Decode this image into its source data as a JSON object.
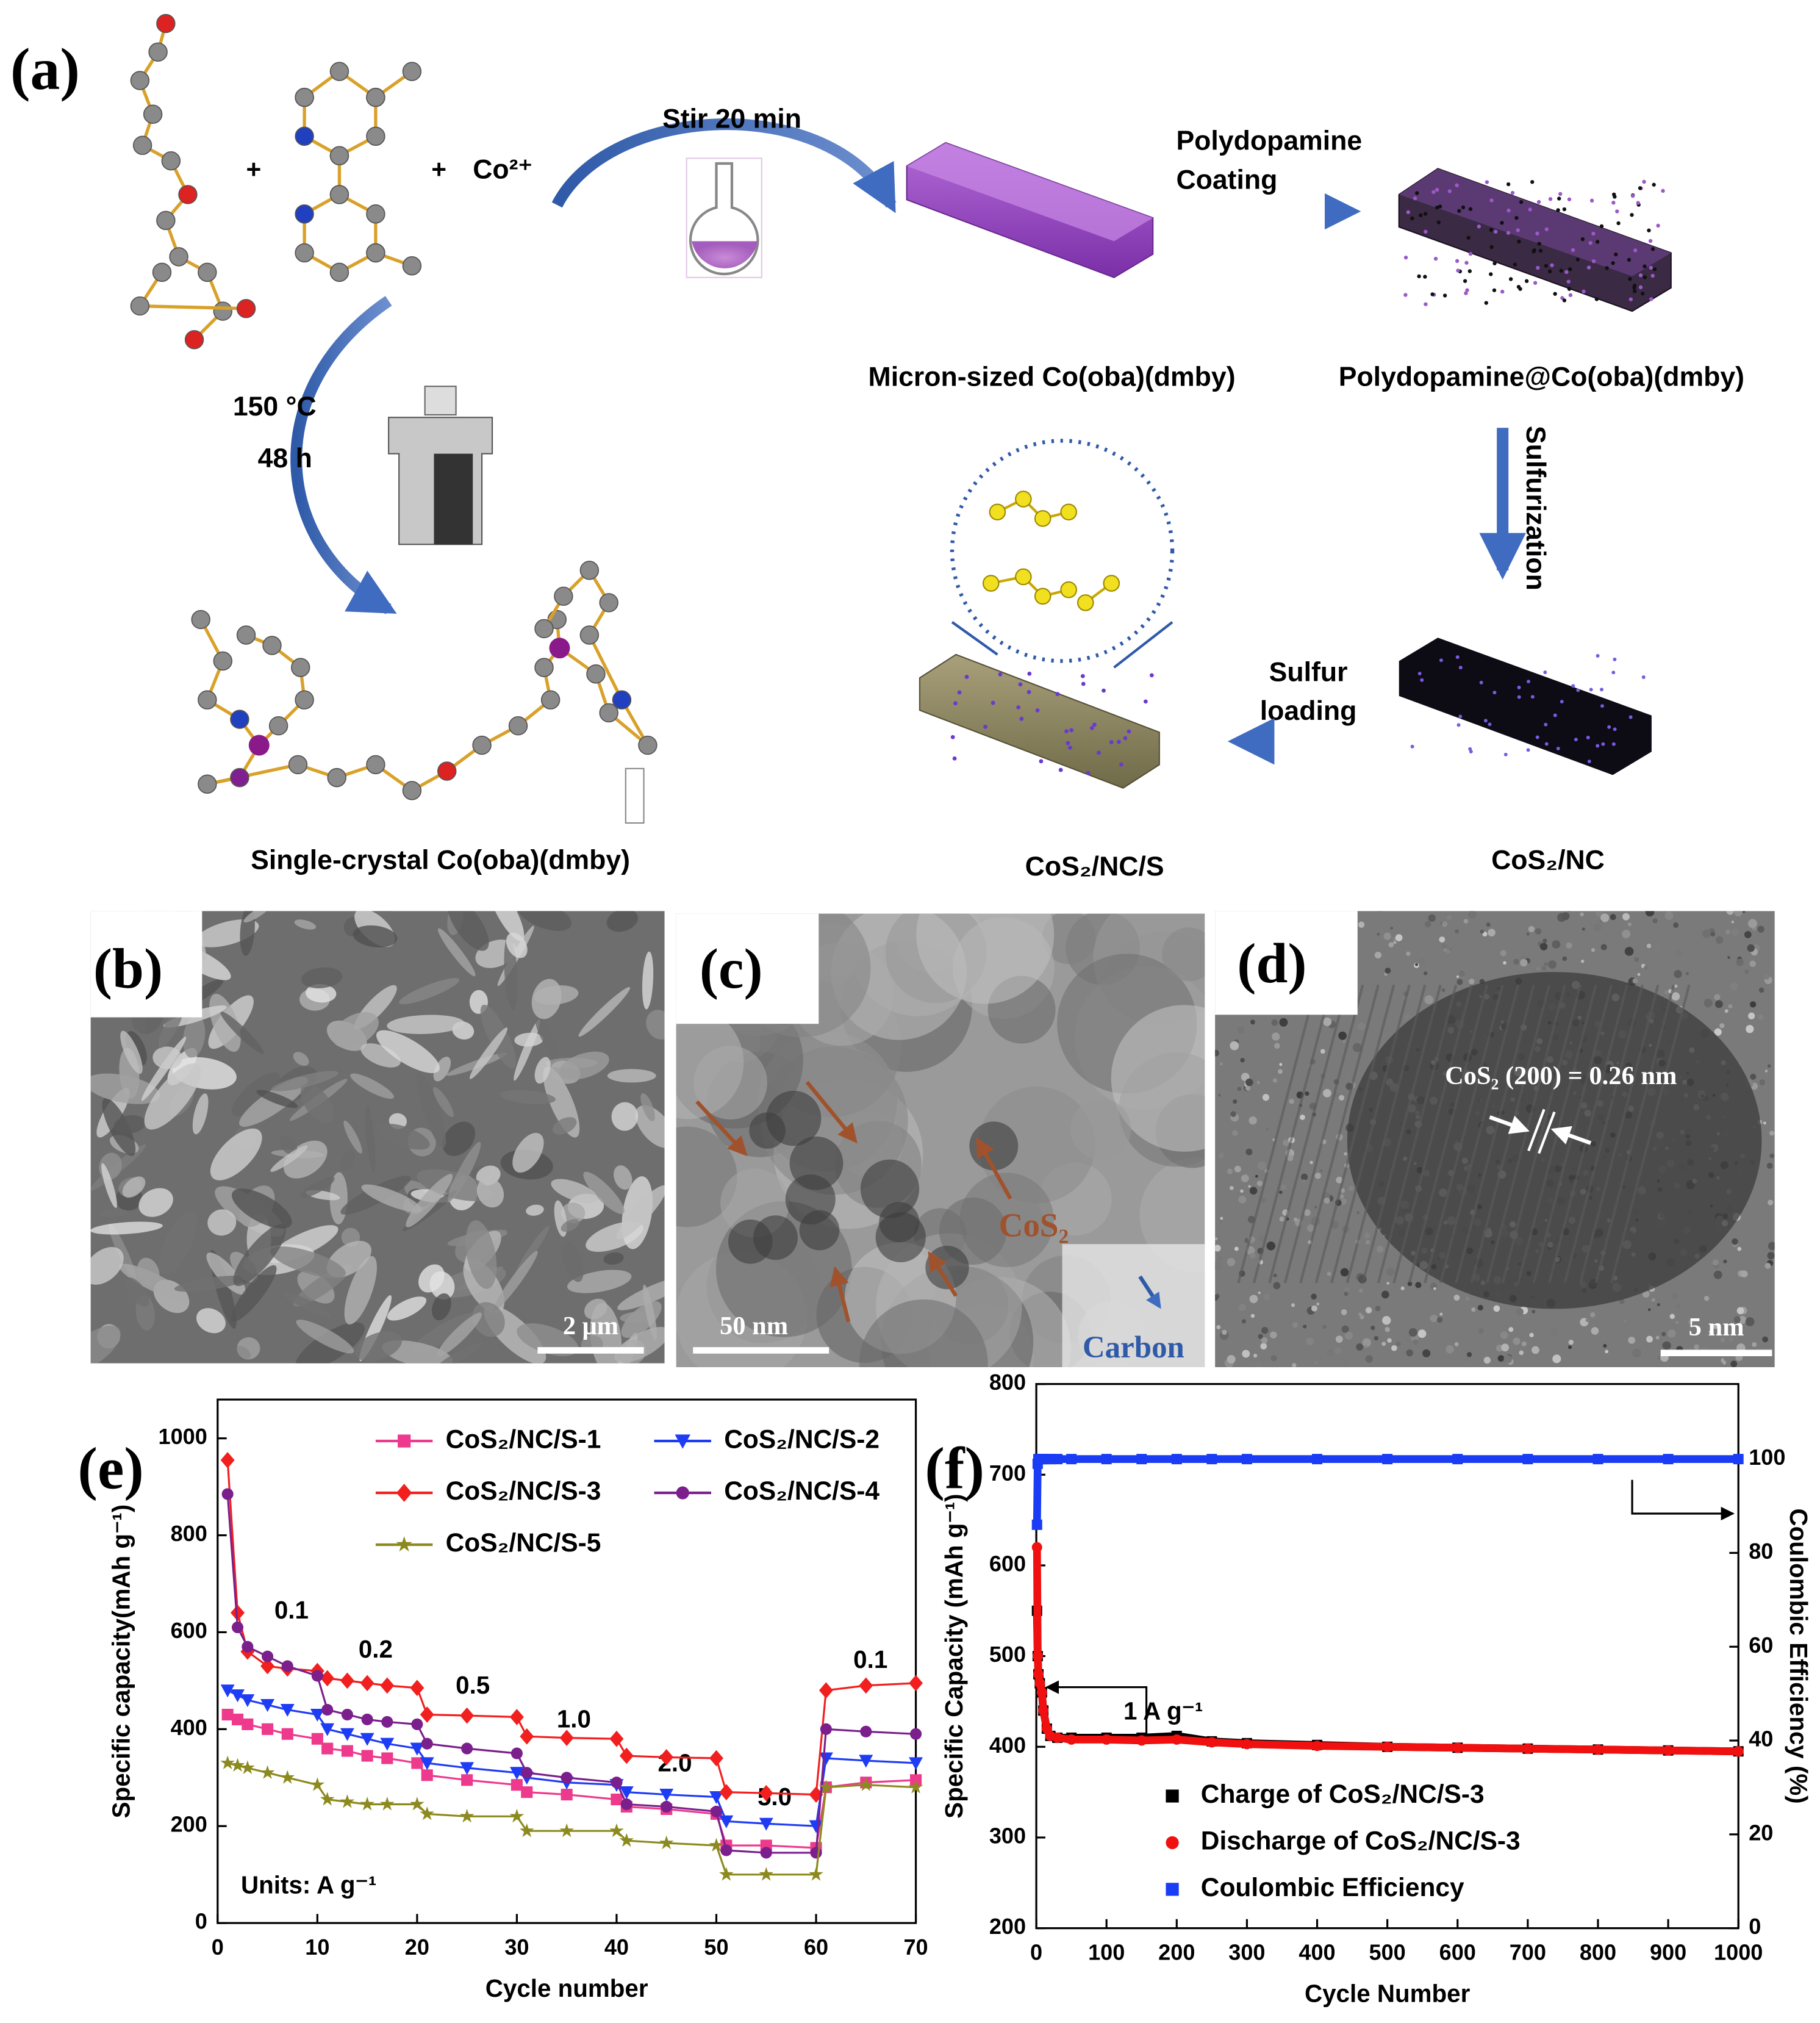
{
  "scheme": {
    "panel_label": "(a)",
    "plus": [
      "+",
      "+"
    ],
    "cobalt": "Co²⁺",
    "stir": "Stir 20 min",
    "coating": [
      "Polydopamine",
      "Coating"
    ],
    "solvothermal": [
      "150 °C",
      "48 h"
    ],
    "sulfurization": "Sulfurization",
    "sulfur_loading": [
      "Sulfur",
      "loading"
    ],
    "products": [
      "Micron-sized Co(oba)(dmby)",
      "Polydopamine@Co(oba)(dmby)",
      "CoS₂/NC",
      "CoS₂/NC/S",
      "Single-crystal Co(oba)(dmby)"
    ]
  },
  "micrographs": [
    {
      "panel_label": "(b)",
      "scale_bar": "2 μm"
    },
    {
      "panel_label": "(c)",
      "scale_bar": "50 nm",
      "labels": [
        "CoS₂",
        "Carbon"
      ]
    },
    {
      "panel_label": "(d)",
      "scale_bar": "5 nm",
      "labels": [
        "CoS₂ (200) = 0.26 nm"
      ]
    }
  ],
  "chart_data": [
    {
      "type": "line",
      "panel_label": "(e)",
      "x_label": "Cycle number",
      "y_label": "Specific capacity(mAh g⁻¹)",
      "annotations": [
        "0.1",
        "0.2",
        "0.5",
        "1.0",
        "2.0",
        "5.0",
        "0.1",
        "Units: A g⁻¹"
      ],
      "x": [
        1,
        2,
        3,
        5,
        7,
        10,
        11,
        13,
        15,
        17,
        20,
        21,
        25,
        30,
        31,
        35,
        40,
        41,
        45,
        50,
        51,
        55,
        60,
        61,
        65,
        70
      ],
      "xlim": [
        0,
        70
      ],
      "xticks": [
        0,
        10,
        20,
        30,
        40,
        50,
        60,
        70
      ],
      "ylim": [
        0,
        1080
      ],
      "yticks": [
        0,
        200,
        400,
        600,
        800,
        1000
      ],
      "series": [
        {
          "name": "CoS₂/NC/S-1",
          "color": "#ee3a8c",
          "marker": "square",
          "values": [
            430,
            420,
            410,
            400,
            390,
            380,
            360,
            355,
            345,
            340,
            330,
            305,
            295,
            285,
            270,
            265,
            255,
            240,
            235,
            225,
            160,
            160,
            155,
            280,
            290,
            295
          ]
        },
        {
          "name": "CoS₂/NC/S-2",
          "color": "#1f3cf5",
          "marker": "triangle-down",
          "values": [
            480,
            470,
            460,
            450,
            440,
            430,
            400,
            390,
            380,
            370,
            360,
            330,
            320,
            310,
            300,
            290,
            285,
            270,
            265,
            260,
            210,
            205,
            200,
            340,
            335,
            330
          ]
        },
        {
          "name": "CoS₂/NC/S-3",
          "color": "#f21f1f",
          "marker": "diamond",
          "values": [
            955,
            640,
            560,
            530,
            525,
            520,
            505,
            500,
            495,
            490,
            485,
            430,
            428,
            425,
            385,
            382,
            380,
            345,
            342,
            340,
            270,
            268,
            265,
            480,
            490,
            495
          ]
        },
        {
          "name": "CoS₂/NC/S-4",
          "color": "#7a1f8c",
          "marker": "circle",
          "values": [
            885,
            610,
            570,
            550,
            530,
            510,
            440,
            430,
            420,
            415,
            410,
            370,
            360,
            350,
            310,
            300,
            290,
            245,
            240,
            230,
            150,
            145,
            145,
            400,
            395,
            390
          ]
        },
        {
          "name": "CoS₂/NC/S-5",
          "color": "#8c8a1f",
          "marker": "star",
          "values": [
            330,
            325,
            320,
            310,
            300,
            285,
            255,
            250,
            245,
            245,
            245,
            225,
            220,
            220,
            190,
            190,
            190,
            170,
            165,
            160,
            100,
            100,
            100,
            280,
            285,
            280
          ]
        }
      ]
    },
    {
      "type": "scatter",
      "panel_label": "(f)",
      "x_label": "Cycle Number",
      "y_label": "Specific Capacity (mAh g⁻¹)",
      "y2_label": "Coulombic Efficiency (%)",
      "annotations": [
        "1 A g⁻¹"
      ],
      "x": [
        1,
        2,
        3,
        5,
        8,
        10,
        15,
        20,
        30,
        50,
        100,
        150,
        200,
        250,
        300,
        400,
        500,
        600,
        700,
        800,
        900,
        1000
      ],
      "xlim": [
        0,
        1000
      ],
      "xticks": [
        0,
        100,
        200,
        300,
        400,
        500,
        600,
        700,
        800,
        900,
        1000
      ],
      "ylim": [
        200,
        800
      ],
      "yticks": [
        200,
        300,
        400,
        500,
        600,
        700,
        800
      ],
      "y2lim": [
        0,
        116
      ],
      "y2ticks": [
        0,
        20,
        40,
        60,
        80,
        100
      ],
      "series": [
        {
          "name": "Charge of CoS₂/NC/S-3",
          "color": "#000000",
          "marker": "square",
          "values": [
            550,
            500,
            480,
            470,
            460,
            440,
            420,
            412,
            410,
            410,
            410,
            410,
            412,
            406,
            404,
            402,
            400,
            399,
            398,
            397,
            396,
            395
          ]
        },
        {
          "name": "Discharge of CoS₂/NC/S-3",
          "color": "#f01010",
          "marker": "circle",
          "values": [
            620,
            500,
            480,
            470,
            460,
            440,
            420,
            412,
            410,
            408,
            408,
            407,
            408,
            405,
            403,
            401,
            400,
            399,
            398,
            397,
            396,
            395
          ]
        },
        {
          "name": "Coulombic Efficiency",
          "color": "#1a3cf5",
          "marker": "square",
          "axis": "y2",
          "values": [
            86,
            99,
            100,
            100,
            100,
            100,
            100,
            100,
            100,
            100,
            100,
            100,
            100,
            100,
            100,
            100,
            100,
            100,
            100,
            100,
            100,
            100
          ]
        }
      ]
    }
  ]
}
